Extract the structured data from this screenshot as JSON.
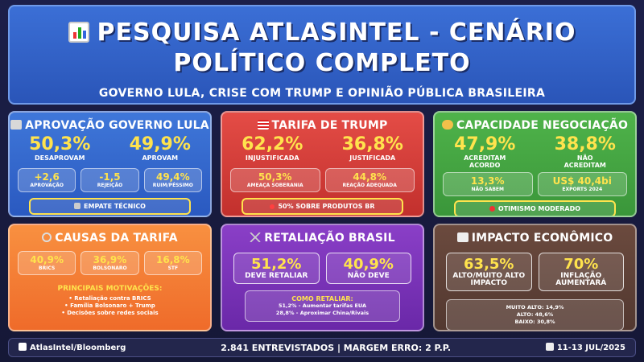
{
  "header": {
    "title_line1": "PESQUISA ATLASINTEL - CENÁRIO",
    "title_line2": "POLÍTICO COMPLETO",
    "subtitle": "GOVERNO LULA, CRISE COM TRUMP E OPINIÃO PÚBLICA BRASILEIRA"
  },
  "aprovacao": {
    "title": "APROVAÇÃO GOVERNO LULA",
    "stats": [
      {
        "value": "50,3%",
        "label": "DESAPROVAM"
      },
      {
        "value": "49,9%",
        "label": "APROVAM"
      }
    ],
    "pills": [
      {
        "value": "+2,6",
        "label": "APROVAÇÃO"
      },
      {
        "value": "-1,5",
        "label": "REJEIÇÃO"
      },
      {
        "value": "49,4%",
        "label": "RUIM/PÉSSIMO"
      }
    ],
    "banner": "EMPATE TÉCNICO"
  },
  "tarifa": {
    "title": "TARIFA DE TRUMP",
    "stats": [
      {
        "value": "62,2%",
        "label": "INJUSTIFICADA"
      },
      {
        "value": "36,8%",
        "label": "JUSTIFICADA"
      }
    ],
    "pills": [
      {
        "value": "50,3%",
        "label": "AMEAÇA SOBERANIA"
      },
      {
        "value": "44,8%",
        "label": "REAÇÃO ADEQUADA"
      }
    ],
    "banner": "50% SOBRE PRODUTOS BR"
  },
  "negociacao": {
    "title": "CAPACIDADE NEGOCIAÇÃO",
    "stats": [
      {
        "value": "47,9%",
        "label1": "ACREDITAM",
        "label2": "ACORDO"
      },
      {
        "value": "38,8%",
        "label1": "NÃO",
        "label2": "ACREDITAM"
      }
    ],
    "pills": [
      {
        "value": "13,3%",
        "label": "NÃO SABEM"
      },
      {
        "value": "US$ 40,4bi",
        "label": "EXPORTS 2024"
      }
    ],
    "banner": "OTIMISMO MODERADO"
  },
  "causas": {
    "title": "CAUSAS DA TARIFA",
    "pills": [
      {
        "value": "40,9%",
        "label": "BRICS"
      },
      {
        "value": "36,9%",
        "label": "BOLSONARO"
      },
      {
        "value": "16,8%",
        "label": "STF"
      }
    ],
    "motiv_title": "PRINCIPAIS MOTIVAÇÕES:",
    "motiv": [
      "• Retaliação contra BRICS",
      "• Família Bolsonaro + Trump",
      "• Decisões sobre redes sociais"
    ]
  },
  "retaliacao": {
    "title": "RETALIAÇÃO BRASIL",
    "stats": [
      {
        "value": "51,2%",
        "label": "DEVE RETALIAR"
      },
      {
        "value": "40,9%",
        "label": "NÃO DEVE"
      }
    ],
    "info_title": "COMO RETALIAR:",
    "info_lines": [
      "51,2% - Aumentar tarifas EUA",
      "28,8% - Aproximar China/Rivais"
    ]
  },
  "impacto": {
    "title": "IMPACTO ECONÔMICO",
    "stats": [
      {
        "value": "63,5%",
        "label1": "ALTO/MUITO ALTO",
        "label2": "IMPACTO"
      },
      {
        "value": "70%",
        "label1": "INFLAÇÃO",
        "label2": "AUMENTARÁ"
      }
    ],
    "info_lines": [
      "MUITO ALTO: 14,9%",
      "ALTO: 48,6%",
      "BAIXO: 30,8%"
    ]
  },
  "footer": {
    "source": "AtlasIntel/Bloomberg",
    "center": "2.841 ENTREVISTADOS | MARGEM ERRO: 2 P.P.",
    "date": "11-13 JUL/2025"
  }
}
